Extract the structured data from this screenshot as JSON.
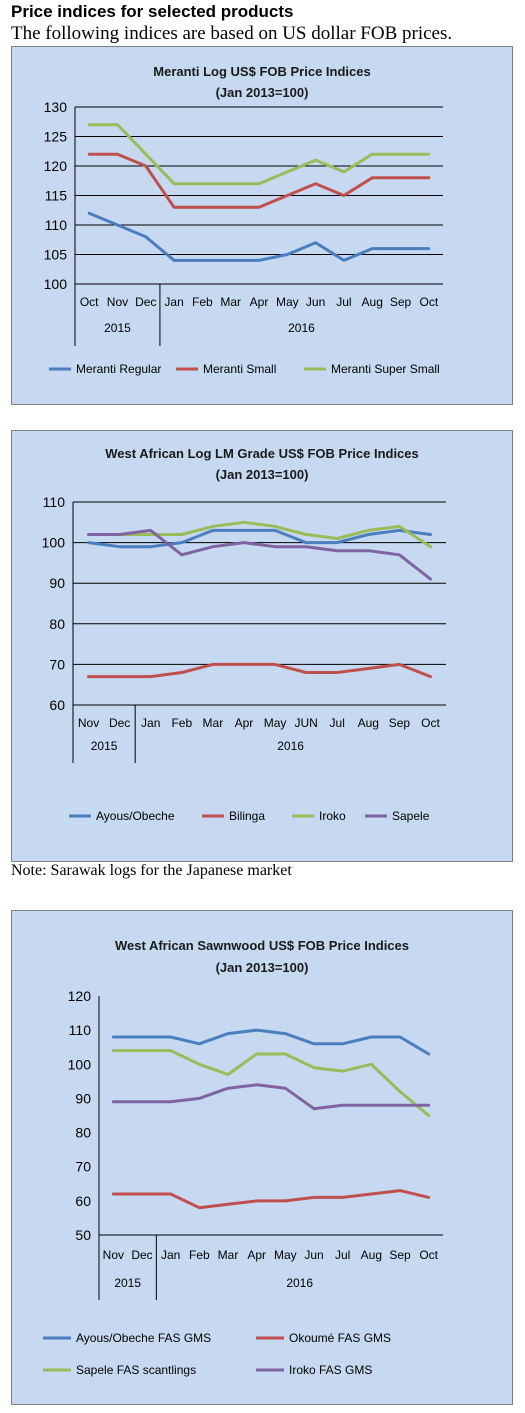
{
  "header": {
    "title": "Price indices for selected products",
    "subtitle": "The following indices are based on US dollar FOB prices."
  },
  "note": "Note: Sarawak logs for the Japanese market",
  "chart_data": [
    {
      "type": "line",
      "title": "Meranti Log US$ FOB Price Indices",
      "subtitle": "(Jan 2013=100)",
      "categories": [
        "Oct",
        "Nov",
        "Dec",
        "Jan",
        "Feb",
        "Mar",
        "Apr",
        "May",
        "Jun",
        "Jul",
        "Aug",
        "Sep",
        "Oct"
      ],
      "year_groups": [
        {
          "label": "2015",
          "count": 3
        },
        {
          "label": "2016",
          "count": 10
        }
      ],
      "ylim": [
        100,
        130
      ],
      "yticks": [
        100,
        105,
        110,
        115,
        120,
        125,
        130
      ],
      "grid": true,
      "legend": "bottom",
      "series": [
        {
          "name": "Meranti Regular",
          "color": "#4a7ebf",
          "values": [
            112,
            110,
            108,
            104,
            104,
            104,
            104,
            105,
            107,
            104,
            106,
            106,
            106
          ]
        },
        {
          "name": "Meranti Small",
          "color": "#c0504d",
          "values": [
            122,
            122,
            120,
            113,
            113,
            113,
            113,
            115,
            117,
            115,
            118,
            118,
            118
          ]
        },
        {
          "name": "Meranti Super Small",
          "color": "#9bbb59",
          "values": [
            127,
            127,
            122,
            117,
            117,
            117,
            117,
            119,
            121,
            119,
            122,
            122,
            122
          ]
        }
      ]
    },
    {
      "type": "line",
      "title": "West African Log LM Grade US$ FOB Price Indices",
      "subtitle": "(Jan 2013=100)",
      "categories": [
        "Nov",
        "Dec",
        "Jan",
        "Feb",
        "Mar",
        "Apr",
        "May",
        "JUN",
        "Jul",
        "Aug",
        "Sep",
        "Oct"
      ],
      "year_groups": [
        {
          "label": "2015",
          "count": 2
        },
        {
          "label": "2016",
          "count": 10
        }
      ],
      "ylim": [
        60,
        110
      ],
      "yticks": [
        60,
        70,
        80,
        90,
        100,
        110
      ],
      "grid": true,
      "legend": "bottom",
      "series": [
        {
          "name": "Ayous/Obeche",
          "color": "#4a7ebf",
          "values": [
            100,
            99,
            99,
            100,
            103,
            103,
            103,
            100,
            100,
            102,
            103,
            102
          ]
        },
        {
          "name": "Bilinga",
          "color": "#c0504d",
          "values": [
            67,
            67,
            67,
            68,
            70,
            70,
            70,
            68,
            68,
            69,
            70,
            67
          ]
        },
        {
          "name": "Iroko",
          "color": "#9bbb59",
          "values": [
            102,
            102,
            102,
            102,
            104,
            105,
            104,
            102,
            101,
            103,
            104,
            99
          ]
        },
        {
          "name": "Sapele",
          "color": "#8064a2",
          "values": [
            102,
            102,
            103,
            97,
            99,
            100,
            99,
            99,
            98,
            98,
            97,
            91
          ]
        }
      ]
    },
    {
      "type": "line",
      "title": "West African Sawnwood US$ FOB Price Indices",
      "subtitle": "(Jan 2013=100)",
      "categories": [
        "Nov",
        "Dec",
        "Jan",
        "Feb",
        "Mar",
        "Apr",
        "May",
        "Jun",
        "Jul",
        "Aug",
        "Sep",
        "Oct"
      ],
      "year_groups": [
        {
          "label": "2015",
          "count": 2
        },
        {
          "label": "2016",
          "count": 10
        }
      ],
      "ylim": [
        50,
        120
      ],
      "yticks": [
        50,
        60,
        70,
        80,
        90,
        100,
        110,
        120
      ],
      "grid": false,
      "legend": "bottom",
      "series": [
        {
          "name": "Ayous/Obeche  FAS GMS",
          "color": "#4a7ebf",
          "values": [
            108,
            108,
            108,
            106,
            109,
            110,
            109,
            106,
            106,
            108,
            108,
            103
          ]
        },
        {
          "name": "Okoumé  FAS GMS",
          "color": "#c0504d",
          "values": [
            62,
            62,
            62,
            58,
            59,
            60,
            60,
            61,
            61,
            62,
            63,
            61
          ]
        },
        {
          "name": "Sapele FAS scantlings",
          "color": "#9bbb59",
          "values": [
            104,
            104,
            104,
            100,
            97,
            103,
            103,
            99,
            98,
            100,
            92,
            85
          ]
        },
        {
          "name": "Iroko FAS GMS",
          "color": "#8064a2",
          "values": [
            89,
            89,
            89,
            90,
            93,
            94,
            93,
            87,
            88,
            88,
            88,
            88
          ]
        }
      ]
    }
  ]
}
